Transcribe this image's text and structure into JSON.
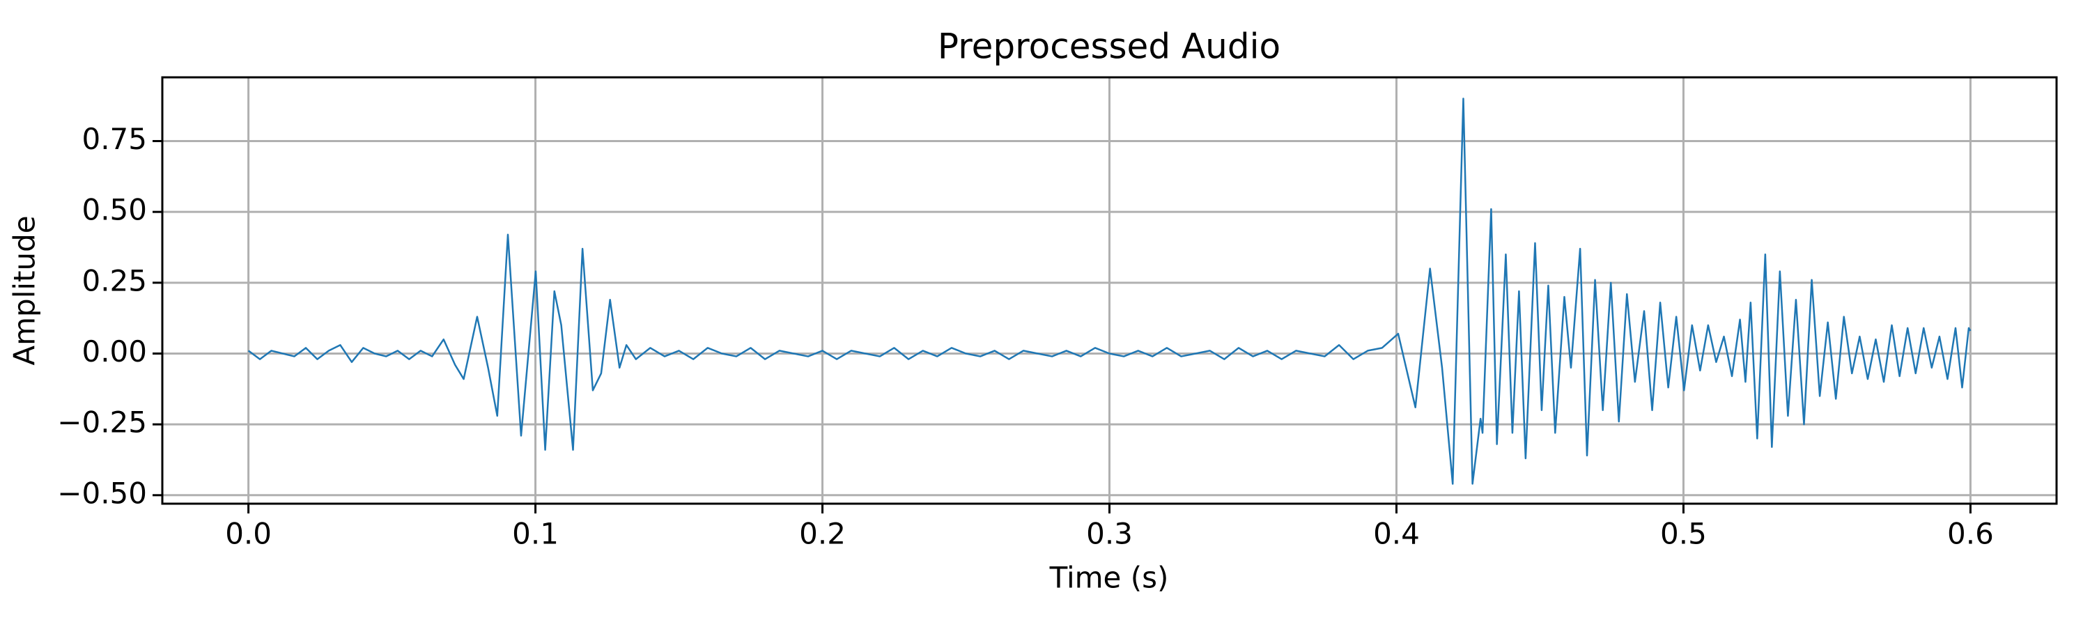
{
  "chart_data": {
    "type": "line",
    "title": "Preprocessed Audio",
    "x_label": "Time (s)",
    "y_label": "Amplitude",
    "xlim": [
      -0.03,
      0.63
    ],
    "ylim": [
      -0.53,
      0.975
    ],
    "xticks": [
      {
        "value": 0,
        "label": "0.0"
      },
      0.1,
      0.2,
      0.3,
      0.4,
      0.5,
      0.6
    ],
    "yticks": [
      {
        "value": -0.5,
        "label": "−0.50"
      },
      {
        "value": -0.25,
        "label": "−0.25"
      },
      {
        "value": 0,
        "label": "0.00"
      },
      {
        "value": 0.25,
        "label": "0.25"
      },
      {
        "value": 0.5,
        "label": "0.50"
      },
      {
        "value": 0.75,
        "label": "0.75"
      }
    ],
    "grid": true,
    "series": [
      {
        "color": "#1f77b4",
        "x": [
          0,
          0.004,
          0.008,
          0.012,
          0.016,
          0.02,
          0.024,
          0.028,
          0.032,
          0.036,
          0.04,
          0.044,
          0.048,
          0.052,
          0.056,
          0.06,
          0.064,
          0.068,
          0.072,
          0.075,
          0.0797,
          0.0835,
          0.0867,
          0.0904,
          0.095,
          0.1001,
          0.1034,
          0.1066,
          0.109,
          0.1131,
          0.1164,
          0.12,
          0.1229,
          0.126,
          0.1293,
          0.1317,
          0.135,
          0.14,
          0.145,
          0.15,
          0.155,
          0.16,
          0.165,
          0.17,
          0.175,
          0.18,
          0.185,
          0.19,
          0.195,
          0.2,
          0.205,
          0.21,
          0.215,
          0.22,
          0.225,
          0.23,
          0.235,
          0.24,
          0.245,
          0.25,
          0.255,
          0.26,
          0.265,
          0.27,
          0.275,
          0.28,
          0.285,
          0.29,
          0.295,
          0.3,
          0.305,
          0.31,
          0.315,
          0.32,
          0.325,
          0.33,
          0.335,
          0.34,
          0.345,
          0.35,
          0.355,
          0.36,
          0.365,
          0.37,
          0.375,
          0.38,
          0.385,
          0.39,
          0.395,
          0.4006,
          0.4066,
          0.4117,
          0.4159,
          0.4196,
          0.4233,
          0.4265,
          0.4293,
          0.43,
          0.433,
          0.435,
          0.4381,
          0.4404,
          0.4427,
          0.445,
          0.4483,
          0.4506,
          0.4529,
          0.4553,
          0.4585,
          0.4608,
          0.464,
          0.4664,
          0.4692,
          0.4719,
          0.4747,
          0.4775,
          0.4803,
          0.4831,
          0.4863,
          0.4891,
          0.4919,
          0.4947,
          0.4975,
          0.5002,
          0.503,
          0.5058,
          0.5086,
          0.5114,
          0.5141,
          0.5169,
          0.5197,
          0.5216,
          0.5234,
          0.5257,
          0.5285,
          0.5308,
          0.5336,
          0.5364,
          0.5392,
          0.542,
          0.5447,
          0.5475,
          0.5503,
          0.5531,
          0.5559,
          0.5587,
          0.5614,
          0.5642,
          0.567,
          0.5698,
          0.5726,
          0.5753,
          0.5781,
          0.5809,
          0.5837,
          0.5865,
          0.5892,
          0.592,
          0.5948,
          0.5971,
          0.5994,
          0.6
        ],
        "values": [
          0.01,
          -0.02,
          0.01,
          0.0,
          -0.01,
          0.02,
          -0.02,
          0.01,
          0.03,
          -0.03,
          0.02,
          0.0,
          -0.01,
          0.01,
          -0.02,
          0.01,
          -0.01,
          0.05,
          -0.04,
          -0.09,
          0.13,
          -0.05,
          -0.22,
          0.42,
          -0.29,
          0.29,
          -0.34,
          0.22,
          0.1,
          -0.34,
          0.37,
          -0.13,
          -0.07,
          0.19,
          -0.05,
          0.03,
          -0.02,
          0.02,
          -0.01,
          0.01,
          -0.02,
          0.02,
          0.0,
          -0.01,
          0.02,
          -0.02,
          0.01,
          0.0,
          -0.01,
          0.01,
          -0.02,
          0.01,
          0.0,
          -0.01,
          0.02,
          -0.02,
          0.01,
          -0.01,
          0.02,
          0.0,
          -0.01,
          0.01,
          -0.02,
          0.01,
          0.0,
          -0.01,
          0.01,
          -0.01,
          0.02,
          0.0,
          -0.01,
          0.01,
          -0.01,
          0.02,
          -0.01,
          0.0,
          0.01,
          -0.02,
          0.02,
          -0.01,
          0.01,
          -0.02,
          0.01,
          0.0,
          -0.01,
          0.03,
          -0.02,
          0.01,
          0.02,
          0.07,
          -0.19,
          0.3,
          -0.05,
          -0.46,
          0.9,
          -0.46,
          -0.23,
          -0.28,
          0.51,
          -0.32,
          0.35,
          -0.28,
          0.22,
          -0.37,
          0.39,
          -0.2,
          0.24,
          -0.28,
          0.2,
          -0.05,
          0.37,
          -0.36,
          0.26,
          -0.2,
          0.25,
          -0.24,
          0.21,
          -0.1,
          0.15,
          -0.2,
          0.18,
          -0.12,
          0.13,
          -0.13,
          0.1,
          -0.06,
          0.1,
          -0.03,
          0.06,
          -0.08,
          0.12,
          -0.1,
          0.18,
          -0.3,
          0.35,
          -0.33,
          0.29,
          -0.22,
          0.19,
          -0.25,
          0.26,
          -0.15,
          0.11,
          -0.16,
          0.13,
          -0.07,
          0.06,
          -0.09,
          0.05,
          -0.1,
          0.1,
          -0.08,
          0.09,
          -0.07,
          0.09,
          -0.05,
          0.06,
          -0.09,
          0.09,
          -0.12,
          0.09,
          0.08
        ]
      }
    ]
  }
}
